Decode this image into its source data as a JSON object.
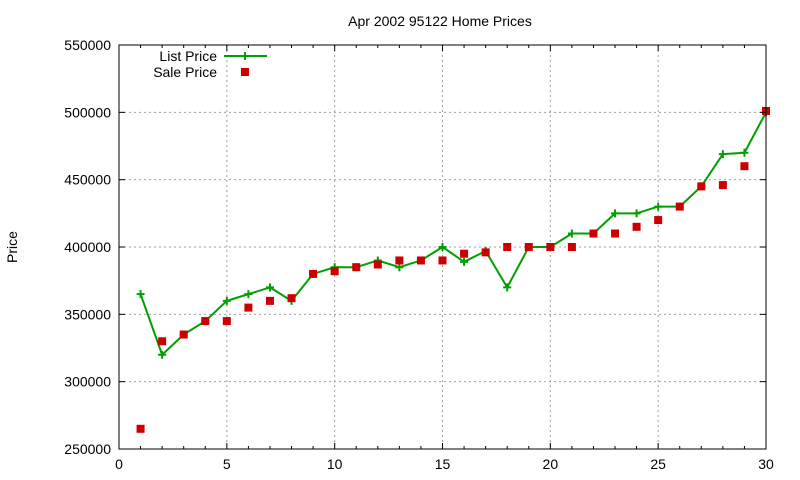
{
  "chart_data": {
    "type": "line",
    "title": "Apr 2002 95122 Home Prices",
    "xlabel": "",
    "ylabel": "Price",
    "xlim": [
      0,
      30
    ],
    "ylim": [
      250000,
      550000
    ],
    "x_ticks": [
      0,
      5,
      10,
      15,
      20,
      25,
      30
    ],
    "y_ticks": [
      250000,
      300000,
      350000,
      400000,
      450000,
      500000,
      550000
    ],
    "grid": true,
    "legend_position": "top-left",
    "series": [
      {
        "name": "List Price",
        "style": "line-with-plus-markers",
        "color": "#00a000",
        "x": [
          1,
          2,
          3,
          4,
          5,
          6,
          7,
          8,
          9,
          10,
          11,
          12,
          13,
          14,
          15,
          16,
          17,
          18,
          19,
          20,
          21,
          22,
          23,
          24,
          25,
          26,
          27,
          28,
          29,
          30
        ],
        "y": [
          365000,
          320000,
          335000,
          345000,
          360000,
          365000,
          370000,
          360000,
          380000,
          385000,
          385000,
          390000,
          385000,
          390000,
          400000,
          389000,
          397000,
          370000,
          400000,
          400000,
          410000,
          410000,
          425000,
          425000,
          430000,
          430000,
          445000,
          469000,
          470000,
          500000
        ]
      },
      {
        "name": "Sale Price",
        "style": "square-markers",
        "color": "#cc0000",
        "x": [
          1,
          2,
          3,
          4,
          5,
          6,
          7,
          8,
          9,
          10,
          11,
          12,
          13,
          14,
          15,
          16,
          17,
          18,
          19,
          20,
          21,
          22,
          23,
          24,
          25,
          26,
          27,
          28,
          29,
          30
        ],
        "y": [
          265000,
          330000,
          335000,
          345000,
          345000,
          355000,
          360000,
          362000,
          380000,
          382000,
          385000,
          387000,
          390000,
          390000,
          390000,
          395000,
          396000,
          400000,
          400000,
          400000,
          400000,
          410000,
          410000,
          415000,
          420000,
          430000,
          445000,
          446000,
          460000,
          501000
        ]
      }
    ]
  }
}
